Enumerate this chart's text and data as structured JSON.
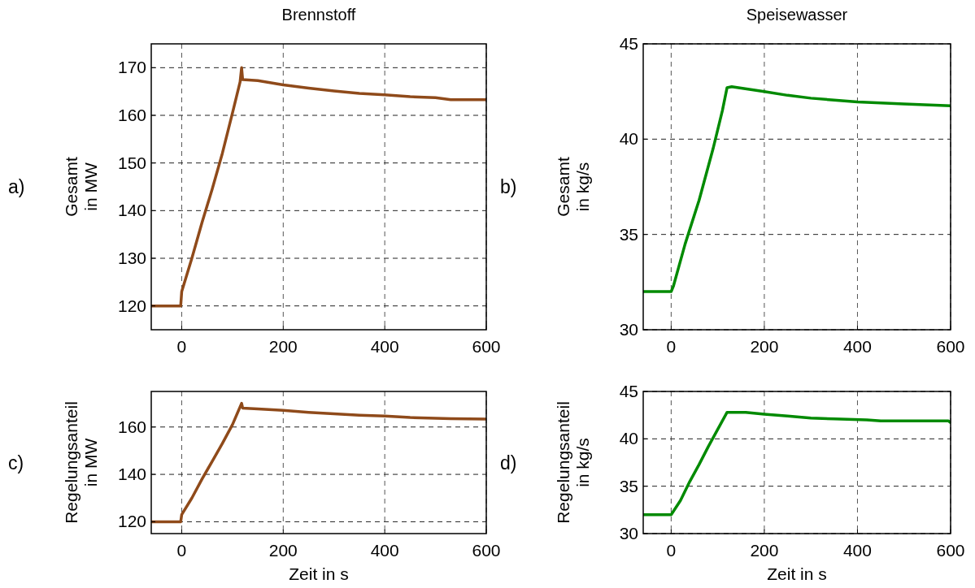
{
  "chart_data": [
    {
      "type": "line",
      "title": "Brennstoff",
      "ylabel": "Gesamt\nin MW",
      "annotations": [
        "a)"
      ],
      "xlim": [
        -60,
        600
      ],
      "xticks": [
        0,
        200,
        400,
        600
      ],
      "ylim": [
        115,
        175
      ],
      "yticks": [
        120,
        130,
        140,
        150,
        160,
        170
      ],
      "grid": true,
      "series": [
        {
          "color": "#8f4a1a",
          "x": [
            -60,
            -2,
            0,
            20,
            40,
            60,
            80,
            100,
            115,
            118,
            120,
            150,
            200,
            250,
            300,
            350,
            400,
            450,
            500,
            530,
            600
          ],
          "values": [
            120,
            120,
            123,
            130,
            137.5,
            144.5,
            152,
            160.5,
            167,
            170,
            167.5,
            167.3,
            166.4,
            165.7,
            165.1,
            164.6,
            164.3,
            163.9,
            163.7,
            163.3,
            163.3
          ]
        }
      ]
    },
    {
      "type": "line",
      "title": "Speisewasser",
      "ylabel": "Gesamt\nin kg/s",
      "annotations": [
        "b)"
      ],
      "xlim": [
        -60,
        600
      ],
      "xticks": [
        0,
        200,
        400,
        600
      ],
      "ylim": [
        30,
        45
      ],
      "yticks": [
        30,
        35,
        40,
        45
      ],
      "grid": true,
      "series": [
        {
          "color": "#008a00",
          "x": [
            -60,
            0,
            5,
            30,
            60,
            90,
            110,
            120,
            130,
            200,
            250,
            300,
            350,
            400,
            450,
            500,
            600
          ],
          "values": [
            32,
            32,
            32.3,
            34.5,
            36.8,
            39.5,
            41.5,
            42.7,
            42.75,
            42.5,
            42.3,
            42.15,
            42.05,
            41.95,
            41.9,
            41.85,
            41.75
          ]
        }
      ]
    },
    {
      "type": "line",
      "xlabel": "Zeit in s",
      "ylabel": "Regelungsanteil\nin MW",
      "annotations": [
        "c)"
      ],
      "xlim": [
        -60,
        600
      ],
      "xticks": [
        0,
        200,
        400,
        600
      ],
      "ylim": [
        115,
        175
      ],
      "yticks": [
        120,
        140,
        160
      ],
      "grid": true,
      "series": [
        {
          "color": "#8f4a1a",
          "x": [
            -60,
            -2,
            0,
            20,
            40,
            60,
            80,
            100,
            118,
            120,
            150,
            200,
            250,
            300,
            350,
            400,
            450,
            530,
            600
          ],
          "values": [
            120,
            120,
            123,
            130,
            138,
            145.5,
            153,
            161,
            170,
            168,
            167.6,
            167,
            166.2,
            165.6,
            165,
            164.6,
            164,
            163.5,
            163.3
          ]
        }
      ]
    },
    {
      "type": "line",
      "xlabel": "Zeit in s",
      "ylabel": "Regelungsanteil\nin kg/s",
      "annotations": [
        "d)"
      ],
      "xlim": [
        -60,
        600
      ],
      "xticks": [
        0,
        200,
        400,
        600
      ],
      "ylim": [
        30,
        45
      ],
      "yticks": [
        30,
        35,
        40,
        45
      ],
      "grid": true,
      "series": [
        {
          "color": "#008a00",
          "x": [
            -60,
            0,
            20,
            40,
            60,
            80,
            100,
            120,
            160,
            200,
            250,
            300,
            350,
            420,
            450,
            595,
            600
          ],
          "values": [
            32,
            32,
            33.5,
            35.5,
            37.3,
            39.2,
            41,
            42.8,
            42.8,
            42.6,
            42.4,
            42.2,
            42.1,
            42,
            41.9,
            41.9,
            41.7
          ]
        }
      ]
    }
  ]
}
